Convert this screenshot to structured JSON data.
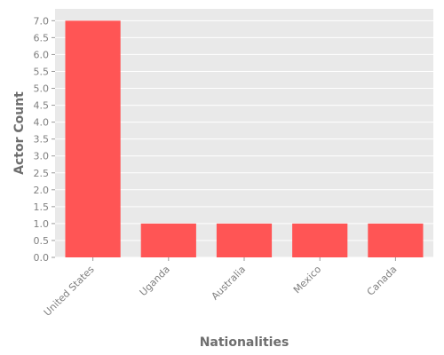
{
  "chart_data": {
    "type": "bar",
    "categories": [
      "United States",
      "Uganda",
      "Australia",
      "Mexico",
      "Canada"
    ],
    "values": [
      7,
      1,
      1,
      1,
      1
    ],
    "title": "",
    "xlabel": "Nationalities",
    "ylabel": "Actor Count",
    "ylim": [
      0,
      7.35
    ],
    "yticks": [
      "0.0",
      "0.5",
      "1.0",
      "1.5",
      "2.0",
      "2.5",
      "3.0",
      "3.5",
      "4.0",
      "4.5",
      "5.0",
      "5.5",
      "6.0",
      "6.5",
      "7.0"
    ],
    "grid": true,
    "legend": "none",
    "colors": {
      "bar": "#ff5555",
      "plot_background": "#e9e9e9",
      "grid": "#ffffff",
      "text": "#7f7f7f"
    }
  }
}
